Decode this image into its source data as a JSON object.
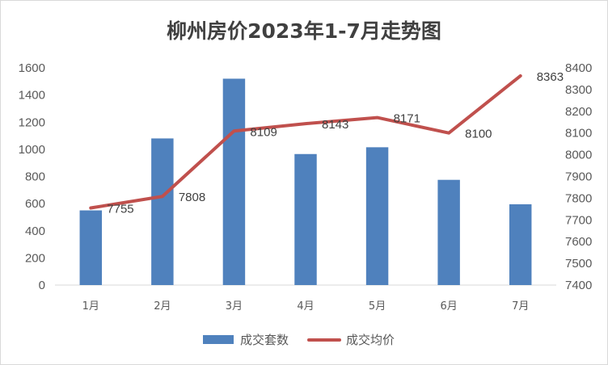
{
  "chart_data": {
    "type": "bar",
    "title": "柳州房价2023年1-7月走势图",
    "categories": [
      "1月",
      "2月",
      "3月",
      "4月",
      "5月",
      "6月",
      "7月"
    ],
    "series": [
      {
        "name": "成交套数",
        "type": "bar",
        "axis": "left",
        "color": "#4f81bd",
        "values": [
          550,
          1080,
          1520,
          965,
          1015,
          775,
          595
        ]
      },
      {
        "name": "成交均价",
        "type": "line",
        "axis": "right",
        "color": "#c0504d",
        "values": [
          7755,
          7808,
          8109,
          8143,
          8171,
          8100,
          8363
        ],
        "data_labels": [
          "7755",
          "7808",
          "8109",
          "8143",
          "8171",
          "8100",
          "8363"
        ]
      }
    ],
    "y_left": {
      "min": 0,
      "max": 1600,
      "ticks": [
        "0",
        "200",
        "400",
        "600",
        "800",
        "1000",
        "1200",
        "1400",
        "1600"
      ]
    },
    "y_right": {
      "min": 7400,
      "max": 8400,
      "ticks": [
        "7400",
        "7500",
        "7600",
        "7700",
        "7800",
        "7900",
        "8000",
        "8100",
        "8200",
        "8300",
        "8400"
      ]
    },
    "grid": false,
    "legend_position": "bottom"
  }
}
